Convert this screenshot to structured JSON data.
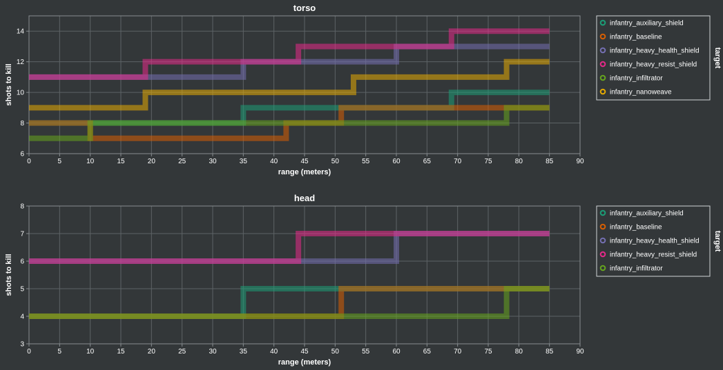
{
  "chart_data": [
    {
      "type": "line",
      "interpolation": "step",
      "title": "torso",
      "xlabel": "range (meters)",
      "ylabel": "shots to kill",
      "xlim": [
        0,
        90
      ],
      "ylim": [
        6,
        15
      ],
      "xticks": [
        0,
        5,
        10,
        15,
        20,
        25,
        30,
        35,
        40,
        45,
        50,
        55,
        60,
        65,
        70,
        75,
        80,
        85,
        90
      ],
      "yticks": [
        6,
        8,
        10,
        12,
        14
      ],
      "grid": true,
      "legend": {
        "title": "target",
        "position": "right"
      },
      "series": [
        {
          "name": "infantry_auxiliary_shield",
          "color": "#1b9e77",
          "steps": [
            [
              0,
              8
            ],
            [
              35,
              9
            ],
            [
              69,
              10
            ],
            [
              85,
              10
            ]
          ]
        },
        {
          "name": "infantry_baseline",
          "color": "#d95f02",
          "steps": [
            [
              0,
              8
            ],
            [
              10,
              7
            ],
            [
              42,
              8
            ],
            [
              51,
              9
            ],
            [
              78,
              9
            ],
            [
              85,
              9
            ]
          ]
        },
        {
          "name": "infantry_heavy_health_shield",
          "color": "#7570b3",
          "steps": [
            [
              0,
              11
            ],
            [
              35,
              12
            ],
            [
              60,
              13
            ],
            [
              85,
              13
            ]
          ]
        },
        {
          "name": "infantry_heavy_resist_shield",
          "color": "#e7298a",
          "steps": [
            [
              0,
              11
            ],
            [
              19,
              12
            ],
            [
              44,
              13
            ],
            [
              69,
              14
            ],
            [
              85,
              14
            ]
          ]
        },
        {
          "name": "infantry_infiltrator",
          "color": "#66a61e",
          "steps": [
            [
              0,
              7
            ],
            [
              10,
              8
            ],
            [
              35,
              8
            ],
            [
              78,
              9
            ],
            [
              85,
              9
            ]
          ]
        },
        {
          "name": "infantry_nanoweave",
          "color": "#e6ab02",
          "steps": [
            [
              0,
              9
            ],
            [
              19,
              10
            ],
            [
              53,
              11
            ],
            [
              78,
              12
            ],
            [
              85,
              12
            ]
          ]
        }
      ]
    },
    {
      "type": "line",
      "interpolation": "step",
      "title": "head",
      "xlabel": "range (meters)",
      "ylabel": "shots to kill",
      "xlim": [
        0,
        90
      ],
      "ylim": [
        3,
        8
      ],
      "xticks": [
        0,
        5,
        10,
        15,
        20,
        25,
        30,
        35,
        40,
        45,
        50,
        55,
        60,
        65,
        70,
        75,
        80,
        85,
        90
      ],
      "yticks": [
        3,
        4,
        5,
        6,
        7,
        8
      ],
      "grid": true,
      "legend": {
        "title": "target",
        "position": "right"
      },
      "series": [
        {
          "name": "infantry_auxiliary_shield",
          "color": "#1b9e77",
          "steps": [
            [
              0,
              4
            ],
            [
              35,
              5
            ],
            [
              85,
              5
            ]
          ]
        },
        {
          "name": "infantry_baseline",
          "color": "#d95f02",
          "steps": [
            [
              0,
              4
            ],
            [
              51,
              5
            ],
            [
              85,
              5
            ]
          ]
        },
        {
          "name": "infantry_heavy_health_shield",
          "color": "#7570b3",
          "steps": [
            [
              0,
              6
            ],
            [
              60,
              7
            ],
            [
              85,
              7
            ]
          ]
        },
        {
          "name": "infantry_heavy_resist_shield",
          "color": "#e7298a",
          "steps": [
            [
              0,
              6
            ],
            [
              44,
              7
            ],
            [
              85,
              7
            ]
          ]
        },
        {
          "name": "infantry_infiltrator",
          "color": "#66a61e",
          "steps": [
            [
              0,
              4
            ],
            [
              78,
              5
            ],
            [
              85,
              5
            ]
          ]
        }
      ]
    }
  ]
}
